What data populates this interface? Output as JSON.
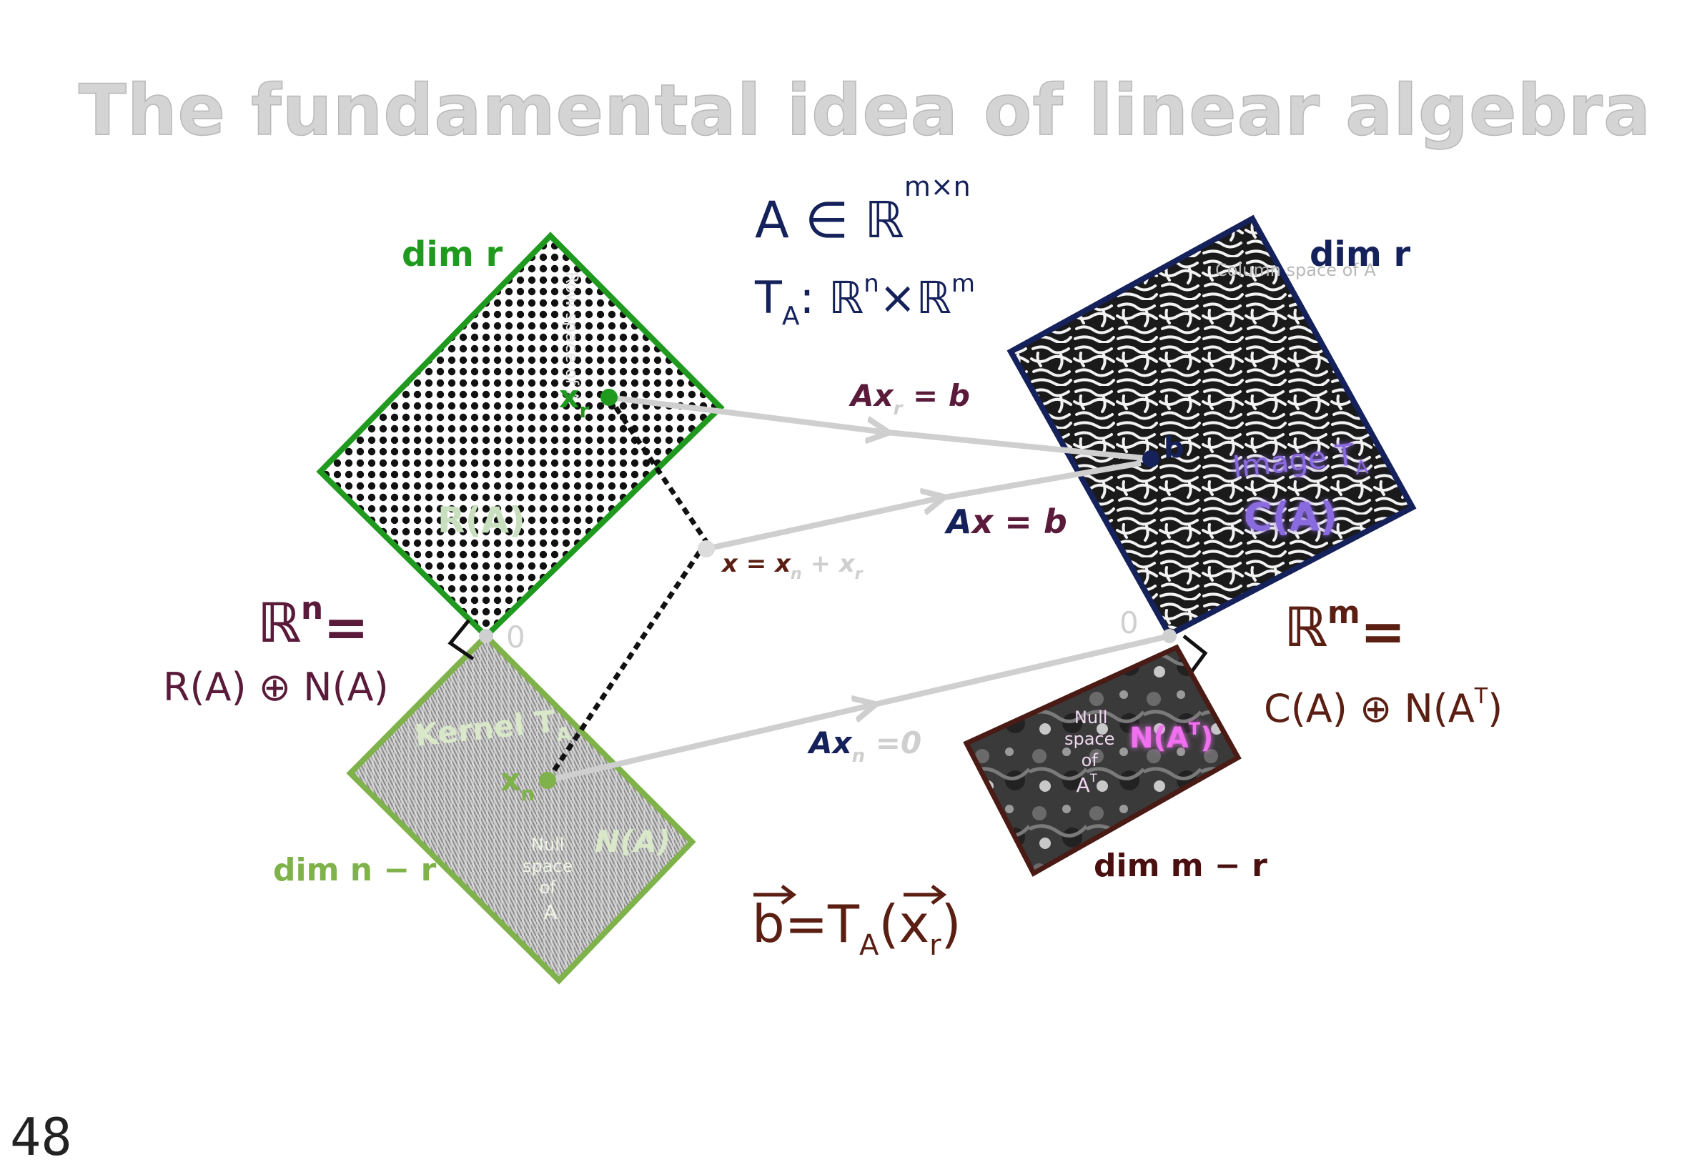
{
  "title": "The fundamental idea of linear algebra",
  "page_number": "48",
  "matrix": {
    "membership": "A ∈ ℝ",
    "membership_exp": "m×n",
    "transform": "T",
    "transform_sub": "A",
    "transform_map": ": ℝ",
    "transform_n": "n",
    "transform_times": "×ℝ",
    "transform_m": "m"
  },
  "row_space": {
    "dim": "dim r",
    "vertical_label": "Row space of A",
    "name": "R(A)",
    "point": "x",
    "point_sub": "r"
  },
  "null_space": {
    "dim": "dim n − r",
    "kernel": "Kernel T",
    "kernel_sub": "A",
    "point": "x",
    "point_sub": "n",
    "label_lines": [
      "Null",
      "space",
      "of",
      "A"
    ],
    "name": "N(A)"
  },
  "column_space": {
    "dim": "dim r",
    "vertical_label": "Column space of A",
    "point": "b",
    "image": "Image T",
    "image_sub": "A",
    "name": "C(A)"
  },
  "left_null_space": {
    "dim": "dim m − r",
    "label_lines": [
      "Null",
      "space",
      "of",
      "A",
      "T"
    ],
    "name": "N(A",
    "name_sup": "T",
    "name_close": ")"
  },
  "domain": {
    "space": "ℝ",
    "space_exp": "n",
    "eq": "=",
    "decomposition": "R(A) ⊕ N(A)"
  },
  "codomain": {
    "space": "ℝ",
    "space_exp": "m",
    "eq": "=",
    "decomposition": "C(A) ⊕ N(A",
    "decomposition_sup": "T",
    "decomposition_close": ")"
  },
  "origin_left": "0",
  "origin_right": "0",
  "equations": {
    "axr_a": "Ax",
    "axr_sub": "r",
    "axr_rest": " = b",
    "ax_a": "A",
    "ax_x": "x",
    "ax_rest": " = b",
    "x_sum": "x = x",
    "x_sum_sub1": "n",
    "x_sum_plus": " + x",
    "x_sum_sub2": "r",
    "axn_a": "Ax",
    "axn_sub": "n",
    "axn_rest": " =0",
    "b_vec": "b",
    "b_eq": "=T",
    "b_sub": "A",
    "b_open": "(",
    "b_x": "x",
    "b_x_sub": "r",
    "b_close": ")"
  },
  "colors": {
    "row_green": "#1f9a1f",
    "null_green": "#7fb24a",
    "navy": "#15215a",
    "maroon": "#5a1a3a",
    "brown": "#5a1e12",
    "purple": "#8a6adf",
    "magenta": "#e040e0",
    "arrow": "#cfcfcf"
  }
}
